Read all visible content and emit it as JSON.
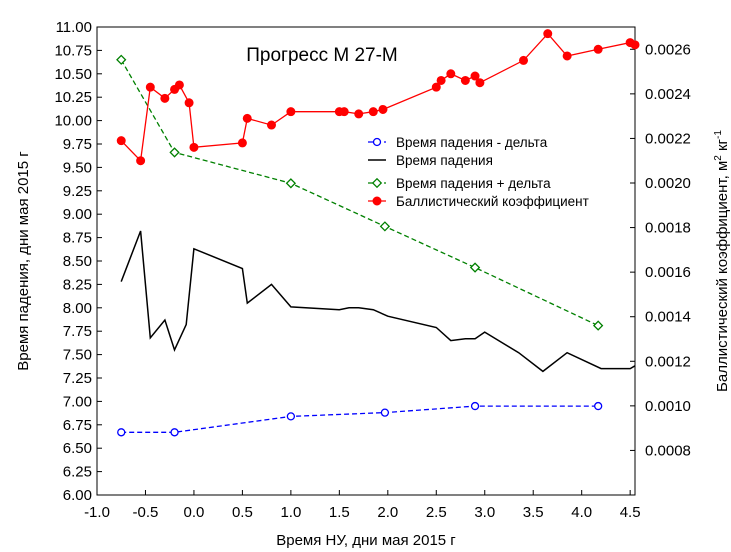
{
  "chart_data": {
    "type": "line",
    "title": "Прогресс М 27-М",
    "xlabel": "Время НУ, дни мая 2015 г",
    "ylabel_left": "Время падения, дни мая 2015 г",
    "ylabel_right": "Баллистический коэффициент, м",
    "ylabel_right_sup1": "2",
    "ylabel_right_mid": " кг",
    "ylabel_right_sup2": "-1",
    "xlim": [
      -1.0,
      4.55
    ],
    "xticks": [
      "-1.0",
      "-0.5",
      "0.0",
      "0.5",
      "1.0",
      "1.5",
      "2.0",
      "2.5",
      "3.0",
      "3.5",
      "4.0",
      "4.5"
    ],
    "ylim_left": [
      6.0,
      11.0
    ],
    "yticks_left": [
      "6.00",
      "6.25",
      "6.50",
      "6.75",
      "7.00",
      "7.25",
      "7.50",
      "7.75",
      "8.00",
      "8.25",
      "8.50",
      "8.75",
      "9.00",
      "9.25",
      "9.50",
      "9.75",
      "10.00",
      "10.25",
      "10.50",
      "10.75",
      "11.00"
    ],
    "ylim_right": [
      0.0006,
      0.0027
    ],
    "yticks_right": [
      "0.0008",
      "0.0010",
      "0.0012",
      "0.0014",
      "0.0016",
      "0.0018",
      "0.0020",
      "0.0022",
      "0.0024",
      "0.0026"
    ],
    "legend_position": "center-right",
    "series": [
      {
        "name": "Время падения - дельта",
        "axis": "left",
        "color": "#0000ff",
        "style": "dashed",
        "marker": "open-circle",
        "x": [
          -0.75,
          -0.2,
          1.0,
          1.97,
          2.9,
          4.17
        ],
        "y": [
          6.67,
          6.67,
          6.84,
          6.88,
          6.95,
          6.95
        ]
      },
      {
        "name": "Время падения",
        "axis": "left",
        "color": "#000000",
        "style": "solid",
        "marker": "none",
        "x": [
          -0.75,
          -0.55,
          -0.45,
          -0.3,
          -0.2,
          -0.08,
          0.0,
          0.5,
          0.55,
          0.8,
          1.0,
          1.5,
          1.6,
          1.7,
          1.85,
          2.0,
          2.5,
          2.65,
          2.8,
          2.9,
          3.0,
          3.35,
          3.6,
          3.85,
          4.2,
          4.5,
          4.55
        ],
        "y": [
          8.28,
          8.82,
          7.68,
          7.87,
          7.55,
          7.82,
          8.63,
          8.42,
          8.05,
          8.25,
          8.01,
          7.98,
          8.0,
          8.0,
          7.98,
          7.91,
          7.79,
          7.65,
          7.67,
          7.67,
          7.74,
          7.52,
          7.32,
          7.52,
          7.35,
          7.35,
          7.38
        ]
      },
      {
        "name": "Время падения + дельта",
        "axis": "left",
        "color": "#008000",
        "style": "dashed",
        "marker": "open-diamond",
        "x": [
          -0.75,
          -0.2,
          1.0,
          1.97,
          2.9,
          4.17
        ],
        "y": [
          10.65,
          9.66,
          9.33,
          8.87,
          8.43,
          7.81
        ]
      },
      {
        "name": "Баллистический коэффициент",
        "axis": "right",
        "color": "#ff0000",
        "style": "solid",
        "marker": "filled-circle",
        "x": [
          -0.75,
          -0.55,
          -0.45,
          -0.3,
          -0.2,
          -0.15,
          -0.05,
          0.0,
          0.5,
          0.55,
          0.8,
          1.0,
          1.5,
          1.55,
          1.7,
          1.85,
          1.95,
          2.5,
          2.55,
          2.65,
          2.8,
          2.9,
          2.95,
          3.4,
          3.65,
          3.85,
          4.17,
          4.5,
          4.55
        ],
        "y": [
          0.00219,
          0.0021,
          0.00243,
          0.00238,
          0.00242,
          0.00244,
          0.00236,
          0.00216,
          0.00218,
          0.00229,
          0.00226,
          0.00232,
          0.00232,
          0.00232,
          0.00231,
          0.00232,
          0.00233,
          0.00243,
          0.00246,
          0.00249,
          0.00246,
          0.00248,
          0.00245,
          0.00255,
          0.00267,
          0.00257,
          0.0026,
          0.00263,
          0.00262
        ]
      }
    ]
  }
}
